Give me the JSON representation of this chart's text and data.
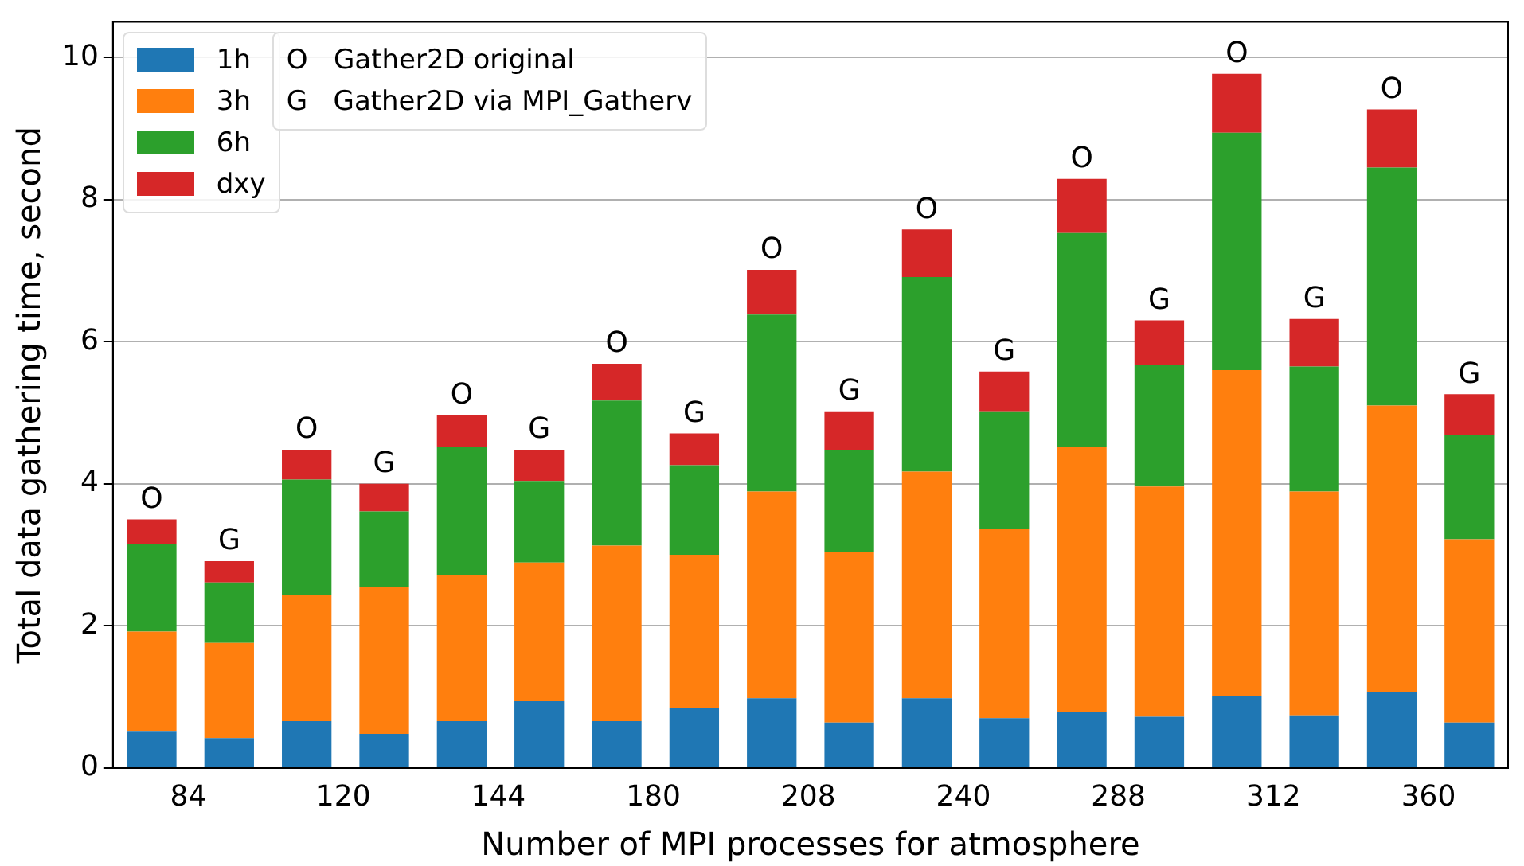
{
  "chart_data": {
    "type": "bar",
    "stacked": true,
    "xlabel": "Number of MPI processes for atmosphere",
    "ylabel": "Total data gathering time, second",
    "categories": [
      "84",
      null,
      "120",
      null,
      "144",
      null,
      "180",
      null,
      "208",
      null,
      "240",
      null,
      "288",
      null,
      "312",
      null,
      "360",
      null
    ],
    "series": [
      {
        "name": "1h",
        "color": "#1f77b4",
        "values": [
          0.51,
          0.42,
          0.66,
          0.48,
          0.66,
          0.94,
          0.66,
          0.85,
          0.98,
          0.64,
          0.98,
          0.7,
          0.79,
          0.72,
          1.01,
          0.74,
          1.07,
          0.64
        ]
      },
      {
        "name": "3h",
        "color": "#ff7f0e",
        "values": [
          1.41,
          1.34,
          1.78,
          2.07,
          2.06,
          1.95,
          2.47,
          2.15,
          2.91,
          2.4,
          3.19,
          2.67,
          3.73,
          3.24,
          4.59,
          3.15,
          4.03,
          2.58
        ]
      },
      {
        "name": "6h",
        "color": "#2ca02c",
        "values": [
          1.23,
          0.85,
          1.62,
          1.06,
          1.8,
          1.15,
          2.04,
          1.26,
          2.49,
          1.44,
          2.74,
          1.65,
          3.01,
          1.71,
          3.34,
          1.76,
          3.35,
          1.47
        ]
      },
      {
        "name": "dxy",
        "color": "#d62728",
        "values": [
          0.35,
          0.3,
          0.42,
          0.39,
          0.45,
          0.44,
          0.52,
          0.45,
          0.63,
          0.54,
          0.67,
          0.56,
          0.76,
          0.63,
          0.83,
          0.67,
          0.82,
          0.57
        ]
      }
    ],
    "ylim": [
      0,
      10.5
    ],
    "yticks": [
      0,
      2,
      4,
      6,
      8,
      10
    ],
    "grid": "y",
    "legend": "top left",
    "annotations": [
      {
        "text": "O",
        "y": 3.5
      },
      {
        "text": "G",
        "y": 2.91
      },
      {
        "text": "O",
        "y": 4.48
      },
      {
        "text": "G",
        "y": 4.0
      },
      {
        "text": "O",
        "y": 4.97
      },
      {
        "text": "G",
        "y": 4.48
      },
      {
        "text": "O",
        "y": 5.69
      },
      {
        "text": "G",
        "y": 4.71
      },
      {
        "text": "O",
        "y": 7.01
      },
      {
        "text": "G",
        "y": 5.02
      },
      {
        "text": "O",
        "y": 7.58
      },
      {
        "text": "G",
        "y": 5.58
      },
      {
        "text": "O",
        "y": 8.29
      },
      {
        "text": "G",
        "y": 6.3
      },
      {
        "text": "O",
        "y": 9.77
      },
      {
        "text": "G",
        "y": 6.32
      },
      {
        "text": "O",
        "y": 9.27
      },
      {
        "text": "G",
        "y": 5.26
      },
      "O   Gather2D original",
      "G   Gather2D via MPI_Gatherv"
    ]
  }
}
